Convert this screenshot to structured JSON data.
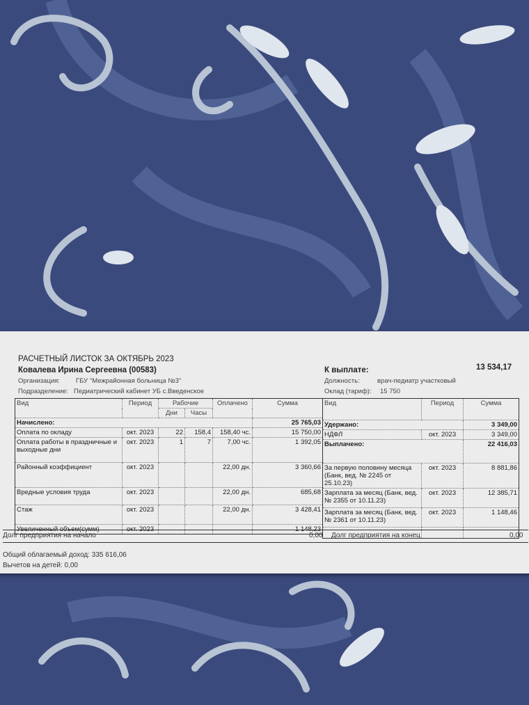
{
  "slip": {
    "title": "РАСЧЕТНЫЙ ЛИСТОК ЗА ОКТЯБРЬ 2023",
    "employee": "Ковалева Ирина Сергеевна (00583)",
    "org_label": "Организация:",
    "org_value": "ГБУ \"Межрайонная больница №3\"",
    "dept_label": "Подразделение:",
    "dept_value": "Педиатрический кабинет УБ с.Введенское",
    "pay_label": "К выплате:",
    "pay_value": "13 534,17",
    "position_label": "Должность:",
    "position_value": "врач-педиатр участковый",
    "salary_label": "Оклад (тариф):",
    "salary_value": "15 750"
  },
  "left_table": {
    "headers": {
      "vid": "Вид",
      "period": "Период",
      "work": "Рабочие",
      "days": "Дни",
      "hours": "Часы",
      "paid": "Оплачено",
      "sum": "Сумма"
    },
    "section_label": "Начислено:",
    "section_total": "25 765,03",
    "rows": [
      {
        "vid": "Оплата по окладу",
        "period": "окт. 2023",
        "days": "22",
        "hours": "158,4",
        "paid": "158,40 чс.",
        "sum": "15 750,00"
      },
      {
        "vid": "Оплата работы в праздничные и выходные дни",
        "period": "окт. 2023",
        "days": "1",
        "hours": "7",
        "paid": "7,00 чс.",
        "sum": "1 392,05"
      },
      {
        "vid": "Районный коэффициент",
        "period": "окт. 2023",
        "days": "",
        "hours": "",
        "paid": "22,00 дн.",
        "sum": "3 360,66"
      },
      {
        "vid": "Вредные условия труда",
        "period": "окт. 2023",
        "days": "",
        "hours": "",
        "paid": "22,00 дн.",
        "sum": "685,68"
      },
      {
        "vid": "Стаж",
        "period": "окт. 2023",
        "days": "",
        "hours": "",
        "paid": "22,00 дн.",
        "sum": "3 428,41"
      },
      {
        "vid": "Увеличенный объем(сумм)",
        "period": "окт. 2023",
        "days": "",
        "hours": "",
        "paid": "",
        "sum": "1 148,23"
      }
    ]
  },
  "right_table": {
    "headers": {
      "vid": "Вид",
      "period": "Период",
      "sum": "Сумма"
    },
    "withheld_label": "Удержано:",
    "withheld_total": "3 349,00",
    "withheld_rows": [
      {
        "vid": "НДФЛ",
        "period": "окт. 2023",
        "sum": "3 349,00"
      }
    ],
    "paid_label": "Выплачено:",
    "paid_total": "22 416,03",
    "paid_rows": [
      {
        "vid": "За первую половину месяца (Банк, вед. № 2245 от 25.10.23)",
        "period": "окт. 2023",
        "sum": "8 881,86"
      },
      {
        "vid": "Зарплата за месяц (Банк, вед. № 2355 от 10.11.23)",
        "period": "окт. 2023",
        "sum": "12 385,71"
      },
      {
        "vid": "Зарплата за месяц (Банк, вед. № 2361 от 10.11.23)",
        "period": "окт. 2023",
        "sum": "1 148,46"
      }
    ]
  },
  "footer": {
    "debt_start_label": "Долг предприятия на начало",
    "debt_start_value": "0,00",
    "debt_end_label": "Долг предприятия на конец",
    "debt_end_value": "0,00",
    "taxable_income": "Общий облагаемый доход: 335 616,06",
    "child_deductions": "Вычетов на детей: 0,00"
  },
  "colors": {
    "fabric": "#3b4a7d",
    "pattern": "#55679a",
    "leaf": "#c9d3de",
    "paper": "#ececec"
  }
}
